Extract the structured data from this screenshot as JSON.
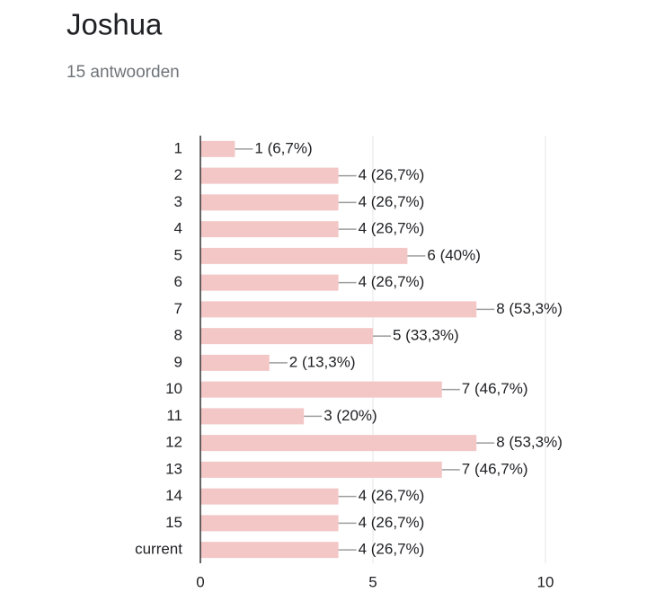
{
  "chart_data": {
    "type": "bar",
    "orientation": "horizontal",
    "title": "Joshua",
    "subtitle": "15 antwoorden",
    "categories": [
      "1",
      "2",
      "3",
      "4",
      "5",
      "6",
      "7",
      "8",
      "9",
      "10",
      "11",
      "12",
      "13",
      "14",
      "15",
      "current"
    ],
    "values": [
      1,
      4,
      4,
      4,
      6,
      4,
      8,
      5,
      2,
      7,
      3,
      8,
      7,
      4,
      4,
      4
    ],
    "value_labels": [
      "1 (6,7%)",
      "4 (26,7%)",
      "4 (26,7%)",
      "4 (26,7%)",
      "6 (40%)",
      "4 (26,7%)",
      "8 (53,3%)",
      "5 (33,3%)",
      "2 (13,3%)",
      "7 (46,7%)",
      "3 (20%)",
      "8 (53,3%)",
      "7 (46,7%)",
      "4 (26,7%)",
      "4 (26,7%)",
      "4 (26,7%)"
    ],
    "color": "#f4c7c7",
    "xlim": [
      0,
      10
    ],
    "xticks": [
      0,
      5,
      10
    ],
    "grid": true
  }
}
